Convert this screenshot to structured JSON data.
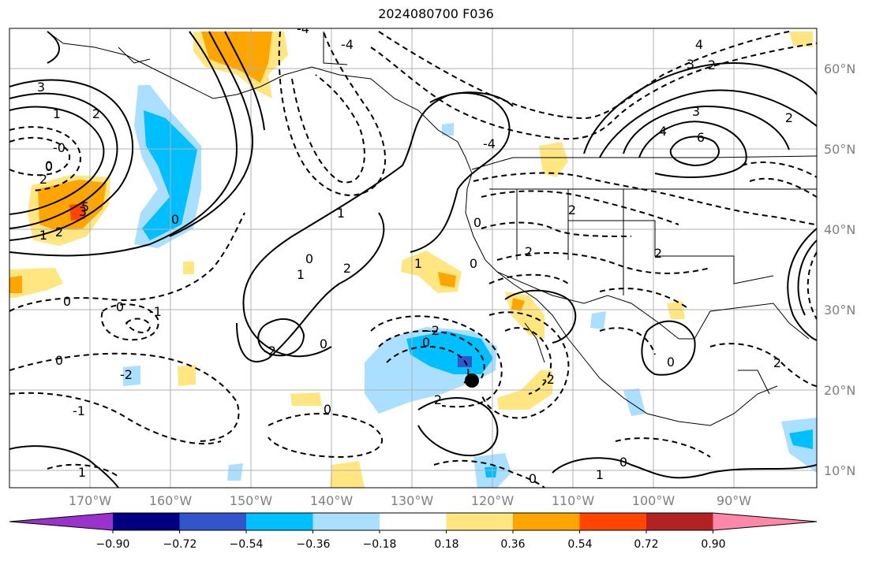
{
  "title": "2024080700 F036",
  "lat_labels": [
    "60°N",
    "50°N",
    "40°N",
    "30°N",
    "20°N",
    "10°N"
  ],
  "lon_labels": [
    "170°W",
    "160°W",
    "150°W",
    "140°W",
    "130°W",
    "120°W",
    "110°W",
    "100°W",
    "90°W"
  ],
  "colorbar": {
    "ticks": [
      "−0.90",
      "−0.72",
      "−0.54",
      "−0.36",
      "−0.18",
      "0.18",
      "0.36",
      "0.54",
      "0.72",
      "0.90"
    ],
    "colors": [
      "#9933cc",
      "#000080",
      "#3355cc",
      "#00bfff",
      "#aadfff",
      "#ffffff",
      "#ffe680",
      "#ffa500",
      "#ff4500",
      "#b22222",
      "#ff88aa"
    ]
  },
  "map": {
    "center_marker": {
      "lon": -122.5,
      "lat": 21.3
    },
    "contour_labels": [
      "3",
      "1",
      "2",
      "0",
      "-0",
      "2",
      "5",
      "3",
      "2",
      "1",
      "-4",
      "-4",
      "4",
      "-4",
      "2",
      "1",
      "0",
      "1",
      "2",
      "0",
      "-2",
      "0",
      "2",
      "2",
      "2",
      "-2",
      "1",
      "0",
      "0",
      "0",
      "-1",
      "0",
      "-2",
      "-2",
      "2",
      "3",
      "6",
      "4",
      "3",
      "2",
      "2",
      "0",
      "0",
      "0",
      "0",
      "-1",
      "1",
      "0",
      "0",
      "1",
      "0"
    ],
    "shading": {
      "positive": "#ffe680",
      "stronger_positive": "#ffa500",
      "strongest_positive": "#ff4500",
      "negative": "#aadfff",
      "stronger_negative": "#00bfff",
      "strongest_negative": "#3355cc"
    }
  }
}
